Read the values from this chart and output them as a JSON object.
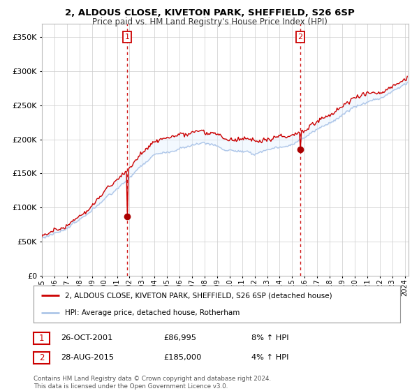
{
  "title_line1": "2, ALDOUS CLOSE, KIVETON PARK, SHEFFIELD, S26 6SP",
  "title_line2": "Price paid vs. HM Land Registry's House Price Index (HPI)",
  "ytick_values": [
    0,
    50000,
    100000,
    150000,
    200000,
    250000,
    300000,
    350000
  ],
  "ylim": [
    0,
    370000
  ],
  "purchase1": {
    "date": "26-OCT-2001",
    "price": 86995,
    "label": "1",
    "x": 2001.82
  },
  "purchase2": {
    "date": "28-AUG-2015",
    "price": 185000,
    "label": "2",
    "x": 2015.65
  },
  "legend_line1": "2, ALDOUS CLOSE, KIVETON PARK, SHEFFIELD, S26 6SP (detached house)",
  "legend_line2": "HPI: Average price, detached house, Rotherham",
  "table_row1": [
    "1",
    "26-OCT-2001",
    "£86,995",
    "8% ↑ HPI"
  ],
  "table_row2": [
    "2",
    "28-AUG-2015",
    "£185,000",
    "4% ↑ HPI"
  ],
  "footer": "Contains HM Land Registry data © Crown copyright and database right 2024.\nThis data is licensed under the Open Government Licence v3.0.",
  "hpi_color": "#aec6e8",
  "price_color": "#cc0000",
  "fill_color": "#ddeeff",
  "marker_color": "#aa0000",
  "dashed_color": "#cc0000",
  "background_color": "#ffffff",
  "grid_color": "#cccccc",
  "xlim": [
    1995,
    2024.3
  ]
}
